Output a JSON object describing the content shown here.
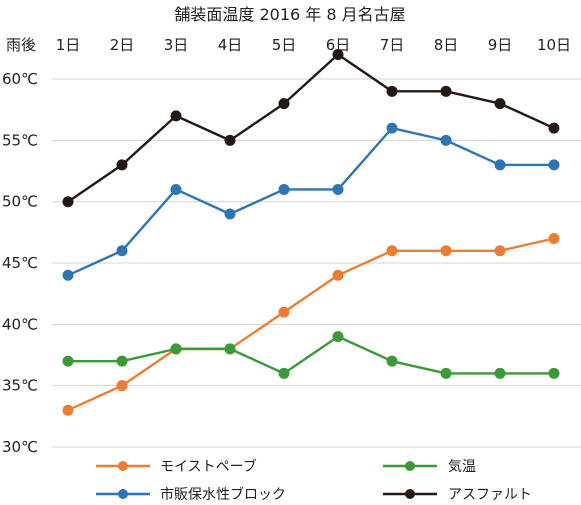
{
  "chart_data": {
    "type": "line",
    "title": "舗装面温度 2016 年 8 月名古屋",
    "x_prefix_label": "雨後",
    "categories": [
      "1日",
      "2日",
      "3日",
      "4日",
      "5日",
      "6日",
      "7日",
      "8日",
      "9日",
      "10日"
    ],
    "y_tick_labels": [
      "60℃",
      "55℃",
      "50℃",
      "45℃",
      "40℃",
      "35℃",
      "30℃"
    ],
    "y_ticks": [
      60,
      55,
      50,
      45,
      40,
      35,
      30
    ],
    "ylim": [
      30,
      64
    ],
    "grid": "horizontal",
    "legend_position": "bottom",
    "series": [
      {
        "name": "アスファルト",
        "color": "#231815",
        "values": [
          50,
          53,
          57,
          55,
          58,
          62,
          59,
          59,
          58,
          56
        ]
      },
      {
        "name": "市販保水性ブロック",
        "color": "#2e75b6",
        "values": [
          44,
          46,
          51,
          49,
          51,
          51,
          56,
          55,
          53,
          53
        ]
      },
      {
        "name": "モイストペーブ",
        "color": "#ed7d31",
        "values": [
          33,
          35,
          38,
          38,
          41,
          44,
          46,
          46,
          46,
          47
        ]
      },
      {
        "name": "気温",
        "color": "#3a9a3a",
        "values": [
          37,
          37,
          38,
          38,
          36,
          39,
          37,
          36,
          36,
          36
        ]
      }
    ],
    "legend_order": [
      "モイストペーブ",
      "気温",
      "市販保水性ブロック",
      "アスファルト"
    ]
  }
}
